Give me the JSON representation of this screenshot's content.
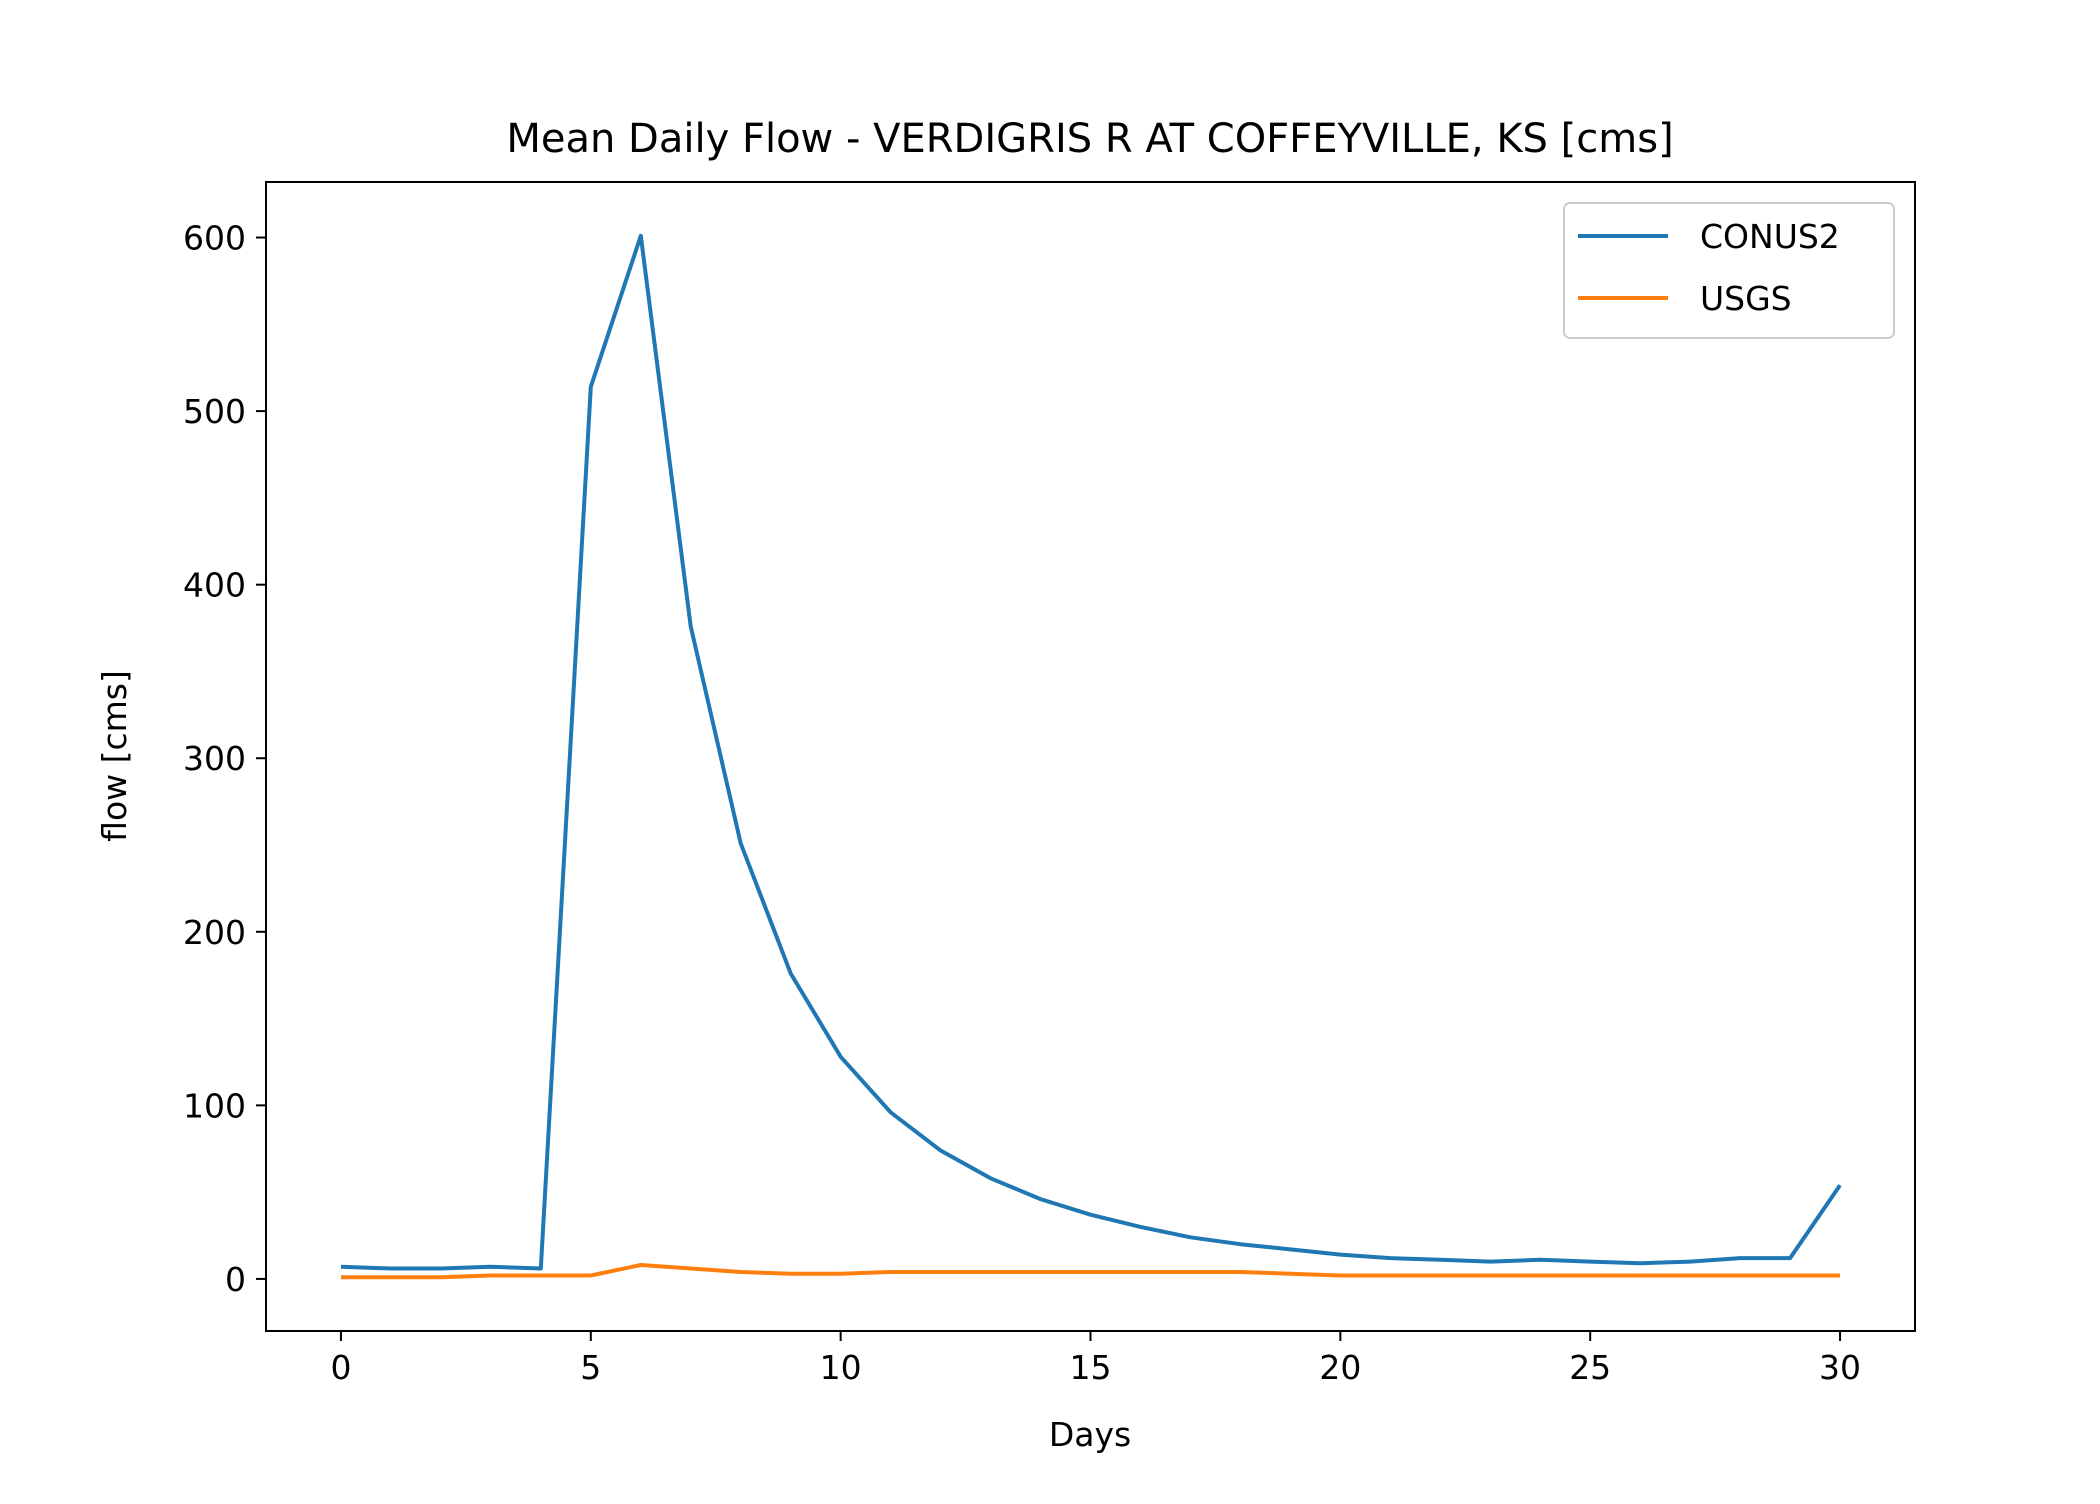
{
  "chart_data": {
    "type": "line",
    "title": "Mean Daily Flow - VERDIGRIS R AT COFFEYVILLE, KS [cms]",
    "xlabel": "Days",
    "ylabel": "flow [cms]",
    "xlim": [
      -1.5,
      31.5
    ],
    "ylim": [
      -30,
      632
    ],
    "xticks": [
      0,
      5,
      10,
      15,
      20,
      25,
      30
    ],
    "yticks": [
      0,
      100,
      200,
      300,
      400,
      500,
      600
    ],
    "grid": false,
    "legend_position": "top-right",
    "x": [
      0,
      1,
      2,
      3,
      4,
      5,
      6,
      7,
      8,
      9,
      10,
      11,
      12,
      13,
      14,
      15,
      16,
      17,
      18,
      19,
      20,
      21,
      22,
      23,
      24,
      25,
      26,
      27,
      28,
      29,
      30
    ],
    "series": [
      {
        "name": "CONUS2",
        "color": "#1f77b4",
        "values": [
          7,
          6,
          6,
          7,
          6,
          514,
          601,
          376,
          251,
          176,
          128,
          96,
          74,
          58,
          46,
          37,
          30,
          24,
          20,
          17,
          14,
          12,
          11,
          10,
          11,
          10,
          9,
          10,
          12,
          12,
          54
        ]
      },
      {
        "name": "USGS",
        "color": "#ff7f0e",
        "values": [
          1,
          1,
          1,
          2,
          2,
          2,
          8,
          6,
          4,
          3,
          3,
          4,
          4,
          4,
          4,
          4,
          4,
          4,
          4,
          3,
          2,
          2,
          2,
          2,
          2,
          2,
          2,
          2,
          2,
          2,
          2
        ]
      }
    ]
  }
}
